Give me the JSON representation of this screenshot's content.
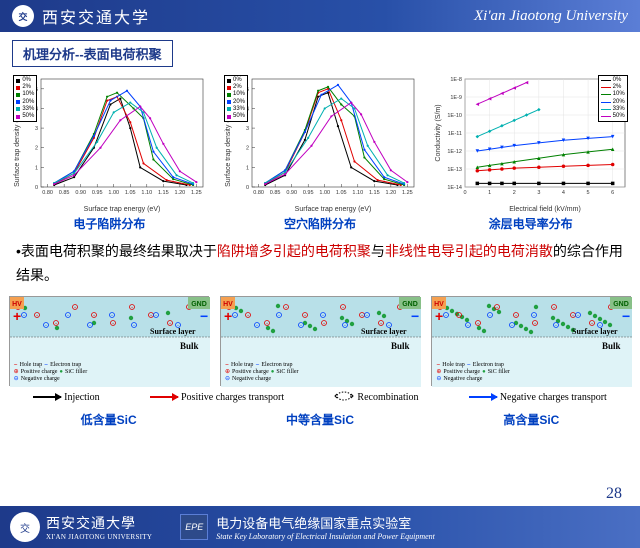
{
  "header": {
    "uni_cn": "西安交通大学",
    "uni_en": "Xi'an Jiaotong University"
  },
  "section_title": "机理分析--表面电荷积聚",
  "trap_chart_common": {
    "type": "line_with_markers",
    "xlabel": "Surface trap energy (eV)",
    "ylabel": "Surface trap density (10²¹eV⁻¹m⁻³)",
    "xlim": [
      0.78,
      1.27
    ],
    "ylim": [
      0,
      5.5
    ],
    "xticks": [
      0.8,
      0.85,
      0.9,
      0.95,
      1.0,
      1.05,
      1.1,
      1.15,
      1.2,
      1.25
    ],
    "yticks": [
      0,
      1,
      2,
      3,
      4,
      5
    ],
    "grid": false,
    "bg": "#ffffff",
    "series_labels": [
      "0%",
      "2%",
      "10%",
      "20%",
      "33%",
      "50%"
    ],
    "series_colors": [
      "#000000",
      "#e00000",
      "#008000",
      "#0040ff",
      "#00b0b0",
      "#c000c0"
    ],
    "marker_size": 2.2,
    "line_width": 1.0
  },
  "chart1": {
    "caption": "电子陷阱分布",
    "series": {
      "0%": [
        [
          0.82,
          0.1
        ],
        [
          0.88,
          0.5
        ],
        [
          0.94,
          2.0
        ],
        [
          0.99,
          4.2
        ],
        [
          1.02,
          4.5
        ],
        [
          1.05,
          3.0
        ],
        [
          1.08,
          1.0
        ],
        [
          1.15,
          0.3
        ],
        [
          1.22,
          0.1
        ]
      ],
      "2%": [
        [
          0.82,
          0.15
        ],
        [
          0.88,
          0.7
        ],
        [
          0.94,
          2.5
        ],
        [
          0.98,
          4.4
        ],
        [
          1.01,
          4.6
        ],
        [
          1.05,
          3.3
        ],
        [
          1.09,
          1.2
        ],
        [
          1.16,
          0.35
        ],
        [
          1.23,
          0.1
        ]
      ],
      "10%": [
        [
          0.82,
          0.2
        ],
        [
          0.88,
          0.8
        ],
        [
          0.94,
          2.7
        ],
        [
          0.98,
          4.6
        ],
        [
          1.01,
          4.8
        ],
        [
          1.06,
          4.0
        ],
        [
          1.09,
          3.5
        ],
        [
          1.12,
          1.4
        ],
        [
          1.18,
          0.4
        ],
        [
          1.24,
          0.1
        ]
      ],
      "20%": [
        [
          0.82,
          0.2
        ],
        [
          0.88,
          0.8
        ],
        [
          0.94,
          2.6
        ],
        [
          0.99,
          4.4
        ],
        [
          1.04,
          4.9
        ],
        [
          1.08,
          4.1
        ],
        [
          1.12,
          1.8
        ],
        [
          1.18,
          0.5
        ],
        [
          1.24,
          0.15
        ]
      ],
      "33%": [
        [
          0.82,
          0.2
        ],
        [
          0.88,
          0.7
        ],
        [
          0.95,
          2.3
        ],
        [
          1.0,
          3.8
        ],
        [
          1.05,
          4.3
        ],
        [
          1.09,
          3.8
        ],
        [
          1.13,
          2.0
        ],
        [
          1.19,
          0.6
        ],
        [
          1.24,
          0.2
        ]
      ],
      "50%": [
        [
          0.82,
          0.15
        ],
        [
          0.88,
          0.6
        ],
        [
          0.96,
          2.0
        ],
        [
          1.02,
          3.4
        ],
        [
          1.08,
          4.1
        ],
        [
          1.11,
          3.5
        ],
        [
          1.15,
          2.2
        ],
        [
          1.2,
          0.8
        ],
        [
          1.25,
          0.25
        ]
      ]
    }
  },
  "chart2": {
    "caption": "空穴陷阱分布",
    "series": {
      "0%": [
        [
          0.82,
          0.1
        ],
        [
          0.88,
          0.6
        ],
        [
          0.94,
          2.4
        ],
        [
          0.98,
          4.6
        ],
        [
          1.01,
          4.8
        ],
        [
          1.04,
          3.1
        ],
        [
          1.08,
          1.0
        ],
        [
          1.15,
          0.3
        ],
        [
          1.22,
          0.1
        ]
      ],
      "2%": [
        [
          0.82,
          0.15
        ],
        [
          0.88,
          0.75
        ],
        [
          0.94,
          2.8
        ],
        [
          0.98,
          4.8
        ],
        [
          1.01,
          5.0
        ],
        [
          1.05,
          3.4
        ],
        [
          1.09,
          1.3
        ],
        [
          1.16,
          0.35
        ],
        [
          1.23,
          0.1
        ]
      ],
      "10%": [
        [
          0.82,
          0.2
        ],
        [
          0.88,
          0.85
        ],
        [
          0.94,
          2.9
        ],
        [
          0.98,
          4.9
        ],
        [
          1.01,
          5.1
        ],
        [
          1.05,
          4.2
        ],
        [
          1.09,
          3.6
        ],
        [
          1.12,
          1.5
        ],
        [
          1.18,
          0.4
        ],
        [
          1.24,
          0.1
        ]
      ],
      "20%": [
        [
          0.82,
          0.2
        ],
        [
          0.88,
          0.85
        ],
        [
          0.94,
          2.8
        ],
        [
          0.99,
          4.7
        ],
        [
          1.04,
          5.2
        ],
        [
          1.08,
          4.3
        ],
        [
          1.12,
          1.9
        ],
        [
          1.18,
          0.5
        ],
        [
          1.24,
          0.15
        ]
      ],
      "33%": [
        [
          0.82,
          0.2
        ],
        [
          0.88,
          0.75
        ],
        [
          0.95,
          2.5
        ],
        [
          1.0,
          4.0
        ],
        [
          1.05,
          4.5
        ],
        [
          1.09,
          4.0
        ],
        [
          1.13,
          2.1
        ],
        [
          1.19,
          0.6
        ],
        [
          1.24,
          0.2
        ]
      ],
      "50%": [
        [
          0.82,
          0.15
        ],
        [
          0.88,
          0.65
        ],
        [
          0.96,
          2.1
        ],
        [
          1.02,
          3.6
        ],
        [
          1.08,
          4.3
        ],
        [
          1.11,
          3.7
        ],
        [
          1.15,
          2.3
        ],
        [
          1.2,
          0.85
        ],
        [
          1.25,
          0.25
        ]
      ]
    }
  },
  "chart3": {
    "caption": "涂层电导率分布",
    "type": "loglin_scatter_line",
    "xlabel": "Electrical field (kV/mm)",
    "ylabel": "Conductivity (S/m)",
    "xlim": [
      0,
      6.5
    ],
    "xticks": [
      0,
      1,
      2,
      3,
      4,
      5,
      6
    ],
    "ylim_exp": [
      -14,
      -8
    ],
    "yticks_exp": [
      -14,
      -13,
      -12,
      -11,
      -10,
      -9,
      -8
    ],
    "series_labels": [
      "0%",
      "2%",
      "10%",
      "20%",
      "33%",
      "50%"
    ],
    "series_colors": [
      "#000000",
      "#e00000",
      "#008000",
      "#0040ff",
      "#00b0b0",
      "#c000c0"
    ],
    "series_markers": [
      "square",
      "circle",
      "triangle",
      "invtriangle",
      "diamond",
      "ltriangle"
    ],
    "marker_size": 3.5,
    "grid": true,
    "series": {
      "0%": [
        [
          0.5,
          -13.8
        ],
        [
          1,
          -13.8
        ],
        [
          1.5,
          -13.8
        ],
        [
          2,
          -13.8
        ],
        [
          3,
          -13.8
        ],
        [
          4,
          -13.8
        ],
        [
          5,
          -13.8
        ],
        [
          6,
          -13.8
        ]
      ],
      "2%": [
        [
          0.5,
          -13.1
        ],
        [
          1,
          -13.05
        ],
        [
          1.5,
          -13.0
        ],
        [
          2,
          -12.95
        ],
        [
          3,
          -12.9
        ],
        [
          4,
          -12.85
        ],
        [
          5,
          -12.8
        ],
        [
          6,
          -12.75
        ]
      ],
      "10%": [
        [
          0.5,
          -12.9
        ],
        [
          1,
          -12.8
        ],
        [
          1.5,
          -12.7
        ],
        [
          2,
          -12.6
        ],
        [
          3,
          -12.4
        ],
        [
          4,
          -12.2
        ],
        [
          5,
          -12.05
        ],
        [
          6,
          -11.9
        ]
      ],
      "20%": [
        [
          0.5,
          -12.0
        ],
        [
          1,
          -11.9
        ],
        [
          1.5,
          -11.8
        ],
        [
          2,
          -11.7
        ],
        [
          3,
          -11.55
        ],
        [
          4,
          -11.4
        ],
        [
          5,
          -11.3
        ],
        [
          6,
          -11.2
        ]
      ],
      "33%": [
        [
          0.5,
          -11.2
        ],
        [
          1,
          -10.9
        ],
        [
          1.5,
          -10.6
        ],
        [
          2,
          -10.3
        ],
        [
          2.5,
          -10.0
        ],
        [
          3,
          -9.7
        ]
      ],
      "50%": [
        [
          0.5,
          -9.4
        ],
        [
          1,
          -9.1
        ],
        [
          1.5,
          -8.8
        ],
        [
          2,
          -8.5
        ],
        [
          2.5,
          -8.2
        ]
      ]
    }
  },
  "body_text": {
    "pre": "表面电荷积聚的最终结果取决于",
    "red1": "陷阱增多引起的电荷积聚",
    "mid1": "与",
    "red2": "非线性电导引起的电荷消散",
    "post": "的综合作用结果。"
  },
  "diagram": {
    "hv_label": "HV",
    "gnd_label": "GND",
    "surface_layer": "Surface layer",
    "bulk": "Bulk",
    "bg_surface": "#b8e0e8",
    "bg_bulk": "#dff3f7",
    "separator_color": "#555555",
    "key": {
      "hole_trap": "Hole trap",
      "electron_trap": "Electron trap",
      "positive": "Positive charge",
      "sic": "SiC filler",
      "negative": "Negative charge"
    },
    "captions": [
      "低含量SiC",
      "中等含量SiC",
      "高含量SiC"
    ],
    "sic_counts": [
      6,
      14,
      26
    ]
  },
  "legend": {
    "injection": "Injection",
    "pos_transport": "Positive charges transport",
    "recombination": "Recombination",
    "neg_transport": "Negative charges transport",
    "colors": {
      "injection": "#000000",
      "pos": "#e00000",
      "neg": "#0040ff"
    }
  },
  "footer": {
    "uni_cn": "西安交通大學",
    "uni_en": "XI'AN JIAOTONG UNIVERSITY",
    "epe": "EPE",
    "lab_cn": "电力设备电气绝缘国家重点实验室",
    "lab_en": "State Key Laboratory of Electrical Insulation and Power Equipment"
  },
  "page_num": "28"
}
